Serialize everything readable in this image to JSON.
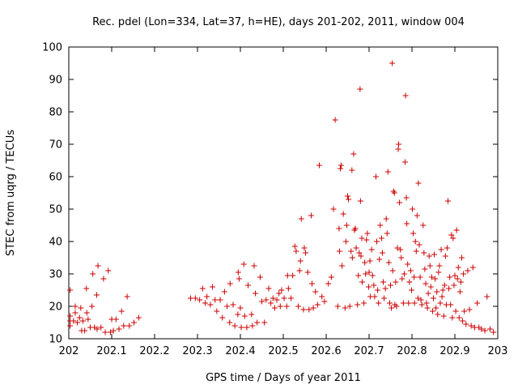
{
  "chart_data": {
    "type": "scatter",
    "title": "Rec. pdel (Lon=334, Lat=37, h=HE), days 201-202, 2011, window 004",
    "xlabel": "GPS time / Days of year 2011",
    "ylabel": "STEC from uqrg / TECUs",
    "xlim": [
      202,
      203
    ],
    "ylim": [
      10,
      100
    ],
    "xticks": [
      "202",
      "202.1",
      "202.2",
      "202.3",
      "202.4",
      "202.5",
      "202.6",
      "202.7",
      "202.8",
      "202.9",
      "203"
    ],
    "yticks": [
      "10",
      "20",
      "30",
      "40",
      "50",
      "60",
      "70",
      "80",
      "90",
      "100"
    ],
    "marker": "+",
    "color": "#cc0000",
    "series": [
      {
        "name": "STEC",
        "points": [
          [
            202.003,
            14.0
          ],
          [
            202.003,
            15.5
          ],
          [
            202.003,
            17.0
          ],
          [
            202.003,
            25.0
          ],
          [
            202.011,
            15.5
          ],
          [
            202.015,
            18.0
          ],
          [
            202.015,
            20.0
          ],
          [
            202.02,
            15.0
          ],
          [
            202.025,
            16.5
          ],
          [
            202.028,
            19.5
          ],
          [
            202.03,
            12.5
          ],
          [
            202.033,
            15.5
          ],
          [
            202.037,
            12.5
          ],
          [
            202.041,
            25.5
          ],
          [
            202.042,
            18.0
          ],
          [
            202.045,
            16.0
          ],
          [
            202.05,
            13.5
          ],
          [
            202.054,
            20.0
          ],
          [
            202.056,
            30.0
          ],
          [
            202.06,
            13.5
          ],
          [
            202.065,
            23.5
          ],
          [
            202.066,
            13.0
          ],
          [
            202.068,
            32.5
          ],
          [
            202.075,
            13.5
          ],
          [
            202.081,
            28.5
          ],
          [
            202.085,
            12.0
          ],
          [
            202.092,
            31.0
          ],
          [
            202.097,
            12.0
          ],
          [
            202.1,
            16.0
          ],
          [
            202.104,
            12.5
          ],
          [
            202.11,
            16.0
          ],
          [
            202.117,
            13.0
          ],
          [
            202.123,
            18.5
          ],
          [
            202.128,
            14.0
          ],
          [
            202.136,
            23.0
          ],
          [
            202.141,
            14.0
          ],
          [
            202.152,
            15.0
          ],
          [
            202.163,
            16.5
          ],
          [
            202.284,
            22.5
          ],
          [
            202.295,
            22.5
          ],
          [
            202.305,
            22.0
          ],
          [
            202.312,
            25.5
          ],
          [
            202.318,
            21.0
          ],
          [
            202.322,
            23.0
          ],
          [
            202.33,
            20.5
          ],
          [
            202.335,
            26.0
          ],
          [
            202.341,
            22.0
          ],
          [
            202.345,
            18.5
          ],
          [
            202.353,
            22.0
          ],
          [
            202.358,
            16.5
          ],
          [
            202.363,
            24.5
          ],
          [
            202.369,
            20.0
          ],
          [
            202.375,
            15.0
          ],
          [
            202.376,
            27.0
          ],
          [
            202.383,
            20.5
          ],
          [
            202.387,
            14.0
          ],
          [
            202.394,
            17.5
          ],
          [
            202.395,
            30.5
          ],
          [
            202.397,
            28.5
          ],
          [
            202.4,
            19.5
          ],
          [
            202.402,
            13.5
          ],
          [
            202.408,
            33.0
          ],
          [
            202.41,
            17.0
          ],
          [
            202.415,
            13.5
          ],
          [
            202.418,
            26.5
          ],
          [
            202.426,
            17.5
          ],
          [
            202.428,
            14.0
          ],
          [
            202.432,
            32.5
          ],
          [
            202.435,
            24.0
          ],
          [
            202.439,
            15.0
          ],
          [
            202.446,
            29.0
          ],
          [
            202.45,
            21.5
          ],
          [
            202.456,
            15.0
          ],
          [
            202.46,
            22.0
          ],
          [
            202.466,
            25.5
          ],
          [
            202.471,
            21.0
          ],
          [
            202.476,
            22.5
          ],
          [
            202.48,
            19.5
          ],
          [
            202.485,
            22.0
          ],
          [
            202.49,
            24.0
          ],
          [
            202.493,
            20.0
          ],
          [
            202.496,
            25.0
          ],
          [
            202.502,
            22.5
          ],
          [
            202.508,
            20.0
          ],
          [
            202.51,
            29.5
          ],
          [
            202.512,
            25.5
          ],
          [
            202.518,
            22.5
          ],
          [
            202.522,
            29.5
          ],
          [
            202.527,
            38.5
          ],
          [
            202.53,
            37.0
          ],
          [
            202.535,
            20.0
          ],
          [
            202.538,
            31.0
          ],
          [
            202.54,
            34.0
          ],
          [
            202.542,
            47.0
          ],
          [
            202.547,
            19.0
          ],
          [
            202.549,
            38.0
          ],
          [
            202.552,
            36.5
          ],
          [
            202.557,
            30.5
          ],
          [
            202.56,
            19.0
          ],
          [
            202.565,
            48.0
          ],
          [
            202.567,
            27.0
          ],
          [
            202.57,
            19.5
          ],
          [
            202.575,
            24.5
          ],
          [
            202.58,
            20.5
          ],
          [
            202.584,
            63.5
          ],
          [
            202.59,
            23.0
          ],
          [
            202.596,
            21.5
          ],
          [
            202.605,
            27.0
          ],
          [
            202.612,
            29.0
          ],
          [
            202.617,
            50.0
          ],
          [
            202.621,
            77.5
          ],
          [
            202.627,
            20.0
          ],
          [
            202.63,
            44.0
          ],
          [
            202.631,
            37.0
          ],
          [
            202.633,
            62.5
          ],
          [
            202.635,
            63.5
          ],
          [
            202.637,
            32.5
          ],
          [
            202.64,
            48.5
          ],
          [
            202.644,
            19.5
          ],
          [
            202.646,
            40.0
          ],
          [
            202.648,
            45.0
          ],
          [
            202.65,
            54.0
          ],
          [
            202.652,
            53.0
          ],
          [
            202.655,
            20.0
          ],
          [
            202.658,
            37.0
          ],
          [
            202.66,
            62.0
          ],
          [
            202.661,
            35.0
          ],
          [
            202.664,
            67.0
          ],
          [
            202.666,
            43.5
          ],
          [
            202.668,
            44.0
          ],
          [
            202.67,
            38.0
          ],
          [
            202.673,
            20.5
          ],
          [
            202.675,
            29.5
          ],
          [
            202.677,
            36.5
          ],
          [
            202.679,
            87.0
          ],
          [
            202.68,
            52.5
          ],
          [
            202.681,
            35.5
          ],
          [
            202.683,
            41.0
          ],
          [
            202.684,
            27.5
          ],
          [
            202.688,
            21.0
          ],
          [
            202.69,
            33.5
          ],
          [
            202.692,
            30.0
          ],
          [
            202.694,
            40.5
          ],
          [
            202.696,
            42.5
          ],
          [
            202.699,
            26.0
          ],
          [
            202.7,
            30.5
          ],
          [
            202.702,
            34.0
          ],
          [
            202.703,
            23.0
          ],
          [
            202.706,
            37.5
          ],
          [
            202.708,
            29.5
          ],
          [
            202.711,
            26.5
          ],
          [
            202.713,
            23.0
          ],
          [
            202.716,
            60.0
          ],
          [
            202.718,
            40.0
          ],
          [
            202.72,
            25.0
          ],
          [
            202.722,
            21.0
          ],
          [
            202.724,
            34.5
          ],
          [
            202.726,
            45.0
          ],
          [
            202.729,
            41.0
          ],
          [
            202.731,
            36.5
          ],
          [
            202.733,
            27.5
          ],
          [
            202.735,
            22.5
          ],
          [
            202.738,
            25.5
          ],
          [
            202.74,
            47.0
          ],
          [
            202.742,
            42.5
          ],
          [
            202.744,
            61.5
          ],
          [
            202.746,
            33.5
          ],
          [
            202.748,
            21.0
          ],
          [
            202.75,
            26.5
          ],
          [
            202.752,
            19.5
          ],
          [
            202.754,
            95.0
          ],
          [
            202.755,
            31.0
          ],
          [
            202.757,
            55.5
          ],
          [
            202.759,
            55.0
          ],
          [
            202.76,
            20.5
          ],
          [
            202.762,
            27.5
          ],
          [
            202.764,
            20.0
          ],
          [
            202.766,
            38.0
          ],
          [
            202.768,
            68.5
          ],
          [
            202.769,
            70.0
          ],
          [
            202.771,
            52.0
          ],
          [
            202.773,
            37.5
          ],
          [
            202.775,
            35.0
          ],
          [
            202.777,
            28.5
          ],
          [
            202.78,
            21.0
          ],
          [
            202.782,
            30.0
          ],
          [
            202.784,
            64.5
          ],
          [
            202.785,
            85.0
          ],
          [
            202.787,
            53.5
          ],
          [
            202.788,
            45.5
          ],
          [
            202.79,
            33.0
          ],
          [
            202.792,
            21.0
          ],
          [
            202.794,
            27.5
          ],
          [
            202.797,
            31.0
          ],
          [
            202.799,
            25.0
          ],
          [
            202.801,
            50.0
          ],
          [
            202.803,
            42.5
          ],
          [
            202.805,
            29.0
          ],
          [
            202.806,
            21.0
          ],
          [
            202.808,
            40.0
          ],
          [
            202.81,
            37.0
          ],
          [
            202.812,
            48.0
          ],
          [
            202.814,
            22.5
          ],
          [
            202.815,
            58.0
          ],
          [
            202.817,
            39.0
          ],
          [
            202.819,
            29.0
          ],
          [
            202.821,
            22.0
          ],
          [
            202.823,
            20.5
          ],
          [
            202.826,
            45.0
          ],
          [
            202.828,
            36.5
          ],
          [
            202.83,
            31.5
          ],
          [
            202.832,
            27.0
          ],
          [
            202.834,
            21.0
          ],
          [
            202.836,
            19.5
          ],
          [
            202.838,
            24.0
          ],
          [
            202.84,
            35.5
          ],
          [
            202.842,
            32.5
          ],
          [
            202.844,
            26.0
          ],
          [
            202.846,
            29.0
          ],
          [
            202.848,
            18.5
          ],
          [
            202.85,
            22.5
          ],
          [
            202.852,
            36.0
          ],
          [
            202.854,
            28.5
          ],
          [
            202.856,
            19.5
          ],
          [
            202.858,
            24.5
          ],
          [
            202.86,
            17.5
          ],
          [
            202.862,
            30.5
          ],
          [
            202.864,
            32.5
          ],
          [
            202.866,
            21.0
          ],
          [
            202.868,
            37.5
          ],
          [
            202.87,
            23.0
          ],
          [
            202.872,
            25.0
          ],
          [
            202.874,
            17.0
          ],
          [
            202.876,
            26.5
          ],
          [
            202.878,
            35.5
          ],
          [
            202.88,
            20.5
          ],
          [
            202.882,
            38.0
          ],
          [
            202.884,
            52.5
          ],
          [
            202.886,
            25.5
          ],
          [
            202.888,
            29.0
          ],
          [
            202.89,
            20.5
          ],
          [
            202.892,
            42.0
          ],
          [
            202.894,
            16.5
          ],
          [
            202.896,
            41.0
          ],
          [
            202.898,
            26.5
          ],
          [
            202.9,
            29.5
          ],
          [
            202.902,
            18.5
          ],
          [
            202.904,
            43.5
          ],
          [
            202.906,
            28.5
          ],
          [
            202.908,
            32.0
          ],
          [
            202.91,
            16.5
          ],
          [
            202.912,
            24.5
          ],
          [
            202.914,
            27.5
          ],
          [
            202.916,
            35.0
          ],
          [
            202.918,
            15.5
          ],
          [
            202.92,
            30.0
          ],
          [
            202.922,
            18.5
          ],
          [
            202.926,
            14.5
          ],
          [
            202.93,
            31.0
          ],
          [
            202.934,
            19.0
          ],
          [
            202.938,
            14.0
          ],
          [
            202.942,
            32.0
          ],
          [
            202.946,
            13.5
          ],
          [
            202.952,
            21.0
          ],
          [
            202.956,
            13.5
          ],
          [
            202.962,
            13.0
          ],
          [
            202.97,
            12.5
          ],
          [
            202.975,
            23.0
          ],
          [
            202.982,
            13.0
          ],
          [
            202.99,
            12.0
          ]
        ]
      }
    ]
  }
}
